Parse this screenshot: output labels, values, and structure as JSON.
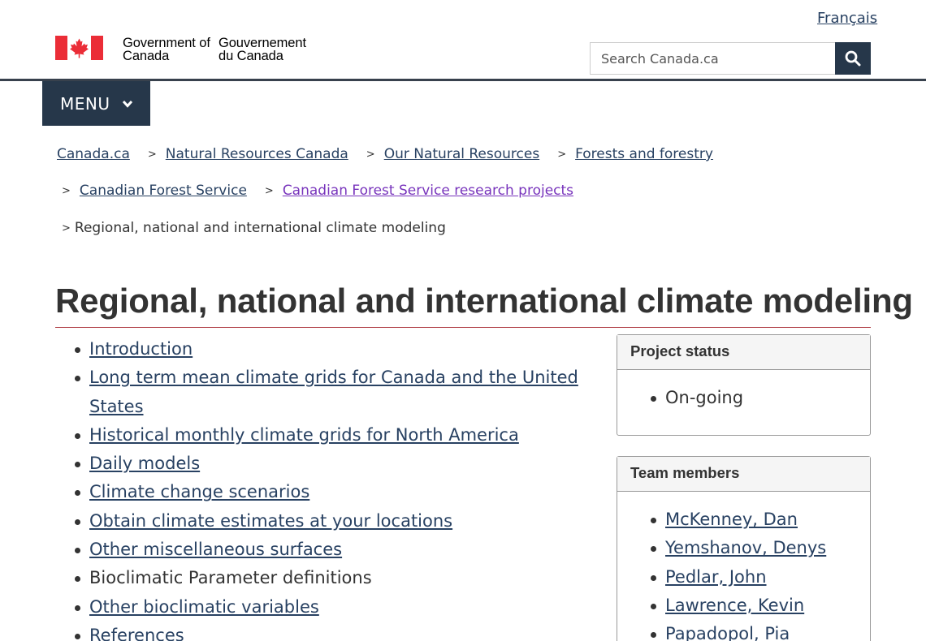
{
  "header": {
    "language_link": "Français",
    "gov_name_en": "Government of Canada",
    "gov_name_fr": "Gouvernement du Canada",
    "search_placeholder": "Search Canada.ca",
    "menu_label": "MENU"
  },
  "breadcrumbs": {
    "row1": [
      "Canada.ca",
      "Natural Resources Canada",
      "Our Natural Resources",
      "Forests and forestry"
    ],
    "row2": [
      "Canadian Forest Service",
      "Canadian Forest Service research projects"
    ],
    "current": "Regional, national and international climate modeling",
    "separator": ">"
  },
  "page_title": "Regional, national and international climate modeling",
  "toc": [
    "Introduction",
    "Long term mean climate grids for Canada and the United States",
    "Historical monthly climate grids for North America",
    "Daily models",
    "Climate change scenarios",
    "Obtain climate estimates at your locations",
    "Other miscellaneous surfaces",
    "Bioclimatic Parameter definitions",
    "Other bioclimatic variables",
    "References"
  ],
  "project_status": {
    "heading": "Project status",
    "items": [
      "On-going"
    ]
  },
  "team_members": {
    "heading": "Team members",
    "items": [
      "McKenney, Dan",
      "Yemshanov, Denys",
      "Pedlar, John",
      "Lawrence, Kevin",
      "Papadopol, Pia"
    ]
  },
  "colors": {
    "link": "#284162",
    "visited_link": "#7834bc",
    "dark_navy": "#26374a",
    "flag_red": "#eb2d37",
    "title_rule": "#af3c43"
  },
  "icons": {
    "search": "search-icon",
    "menu_chevron": "chevron-down-icon",
    "flag": "maple-leaf-flag-icon"
  }
}
